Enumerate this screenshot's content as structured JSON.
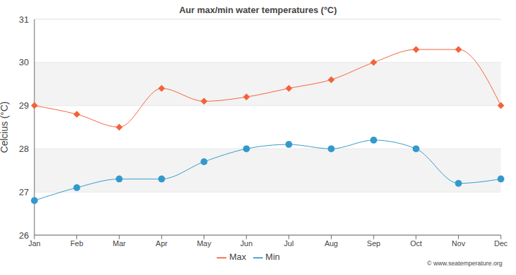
{
  "chart_data": {
    "type": "line",
    "title": "Aur max/min water temperatures (°C)",
    "y_label": "Celcius (°C)",
    "annotations": [
      "© www.seatemperature.org"
    ],
    "categories": [
      "Jan",
      "Feb",
      "Mar",
      "Apr",
      "May",
      "Jun",
      "Jul",
      "Aug",
      "Sep",
      "Oct",
      "Nov",
      "Dec"
    ],
    "series": [
      {
        "name": "Max",
        "color": "#f4623a",
        "marker": "diamond",
        "values": [
          29.0,
          28.8,
          28.5,
          29.4,
          29.1,
          29.2,
          29.4,
          29.6,
          30.0,
          30.3,
          30.3,
          29.0
        ]
      },
      {
        "name": "Min",
        "color": "#3399cc",
        "marker": "circle",
        "values": [
          26.8,
          27.1,
          27.3,
          27.3,
          27.7,
          28.0,
          28.1,
          28.0,
          28.2,
          28.0,
          27.2,
          27.3
        ]
      }
    ],
    "ylim": [
      26,
      31
    ],
    "yticks": [
      26,
      27,
      28,
      29,
      30,
      31
    ],
    "grid": true,
    "legend": "bottom"
  }
}
